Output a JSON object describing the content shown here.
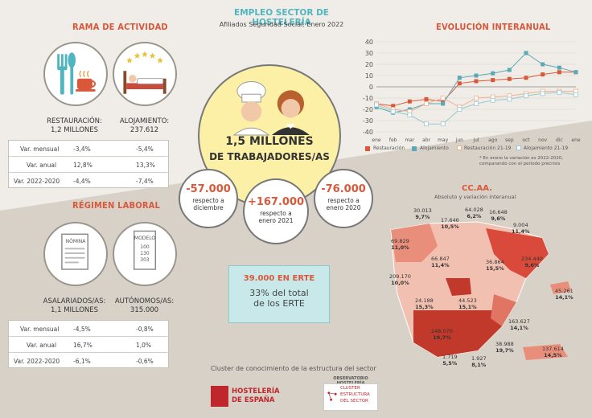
{
  "header": {
    "title": "EMPLEO SECTOR DE HOSTELERÍA",
    "subtitle": "Afiliados Seguridad Social. Enero 2022"
  },
  "rama": {
    "title": "RAMA DE ACTIVIDAD",
    "restauracion": {
      "name": "RESTAURACIÓN:",
      "value": "1,2 MILLONES"
    },
    "alojamiento": {
      "name": "ALOJAMIENTO:",
      "value": "237.612"
    },
    "rows": [
      {
        "label": "Var. mensual",
        "a": "-3,4%",
        "b": "-5,4%"
      },
      {
        "label": "Var. anual",
        "a": "12,8%",
        "b": "13,3%"
      },
      {
        "label": "Var. 2022-2020",
        "a": "-4,4%",
        "b": "-7,4%"
      }
    ]
  },
  "regimen": {
    "title": "RÉGIMEN LABORAL",
    "nomina": "NÓMINA",
    "modelo": "MODELO",
    "modelo_nums": [
      "100",
      "130",
      "303"
    ],
    "asalariados": {
      "name": "ASALARIADOS/AS:",
      "value": "1,1 MILLONES"
    },
    "autonomos": {
      "name": "AUTÓNOMOS/AS:",
      "value": "315.000"
    },
    "rows": [
      {
        "label": "Var. mensual",
        "a": "-4,5%",
        "b": "-0,8%"
      },
      {
        "label": "Var. anual",
        "a": "16,7%",
        "b": "1,0%"
      },
      {
        "label": "Var. 2022-2020",
        "a": "-6,1%",
        "b": "-0,6%"
      }
    ]
  },
  "center": {
    "big_line1": "1,5 MILLONES",
    "big_line2": "DE TRABAJADORES/AS",
    "c1": {
      "num": "-57.000",
      "txt1": "respecto a",
      "txt2": "diciembre"
    },
    "c2": {
      "num": "+167.000",
      "txt1": "respecto a",
      "txt2": "enero 2021"
    },
    "c3": {
      "num": "-76.000",
      "txt1": "respecto a",
      "txt2": "enero 2020"
    }
  },
  "erte": {
    "title": "39.000 EN ERTE",
    "line1": "33% del total",
    "line2": "de los ERTE"
  },
  "footer": {
    "cluster": "Cluster de conocimiento de la estructura del sector",
    "logo1_line1": "HOSTELERÍA",
    "logo1_line2": "DE ESPAÑA",
    "logo2_top": "OBSERVATORIO HOSTELERÍA",
    "logo2_l1": "CLUSTER",
    "logo2_l2": "ESTRUCTURA",
    "logo2_l3": "DEL SECTOR"
  },
  "evolucion": {
    "title": "EVOLUCIÓN INTERANUAL",
    "legend": [
      "Restauración",
      "Alojamiento",
      "Restauración 21-19",
      "Alojamiento 21-19"
    ],
    "note_line1": "* En enero la variación es 2022-2020,",
    "note_line2": "comparando con el periodo precrisis"
  },
  "chart_data": {
    "type": "line",
    "categories": [
      "ene",
      "feb",
      "mar",
      "abr",
      "may",
      "jun",
      "jul",
      "ago",
      "sep",
      "oct",
      "nov",
      "dic",
      "ene"
    ],
    "ylim": [
      -40,
      40
    ],
    "yticks": [
      40,
      30,
      20,
      10,
      0,
      -10,
      -20,
      -30,
      -40
    ],
    "series": [
      {
        "name": "Restauración",
        "color": "#d9583a",
        "values": [
          -15,
          -17,
          -13,
          -11,
          -13,
          3,
          5,
          6,
          7,
          8,
          11,
          13,
          13
        ]
      },
      {
        "name": "Alojamiento",
        "color": "#5aa9b5",
        "values": [
          -18,
          -23,
          -20,
          -15,
          -15,
          8,
          10,
          12,
          15,
          30,
          20,
          17,
          13
        ]
      },
      {
        "name": "Restauración 21-19",
        "color": "#f0b08f",
        "values": [
          -15,
          -20,
          -22,
          -15,
          -10,
          -18,
          -10,
          -9,
          -8,
          -6,
          -4,
          -4,
          -4
        ]
      },
      {
        "name": "Alojamiento 21-19",
        "color": "#9bc9cf",
        "values": [
          -16,
          -22,
          -25,
          -33,
          -33,
          -20,
          -15,
          -12,
          -11,
          -8,
          -6,
          -5,
          -7
        ]
      }
    ]
  },
  "ccaa": {
    "title": "CC.AA.",
    "subtitle": "Absoluto y variación interanual",
    "regions": [
      {
        "n": "30.013",
        "p": "9,7%"
      },
      {
        "n": "17.646",
        "p": "10,5%"
      },
      {
        "n": "64.028",
        "p": "6,2%"
      },
      {
        "n": "16.648",
        "p": "9,6%"
      },
      {
        "n": "9.004",
        "p": "11,4%"
      },
      {
        "n": "69.829",
        "p": "11,0%"
      },
      {
        "n": "66.847",
        "p": "11,4%"
      },
      {
        "n": "36.864",
        "p": "15,5%"
      },
      {
        "n": "234.440",
        "p": "9,6%"
      },
      {
        "n": "209.170",
        "p": "10,0%"
      },
      {
        "n": "24.188",
        "p": "15,3%"
      },
      {
        "n": "44.523",
        "p": "15,1%"
      },
      {
        "n": "45.261",
        "p": "14,1%"
      },
      {
        "n": "163.627",
        "p": "14,1%"
      },
      {
        "n": "248.070",
        "p": "19,7%"
      },
      {
        "n": "38.988",
        "p": "19,7%"
      },
      {
        "n": "137.614",
        "p": "14,5%"
      },
      {
        "n": "1.719",
        "p": "5,5%"
      },
      {
        "n": "1.927",
        "p": "8,1%"
      }
    ]
  }
}
